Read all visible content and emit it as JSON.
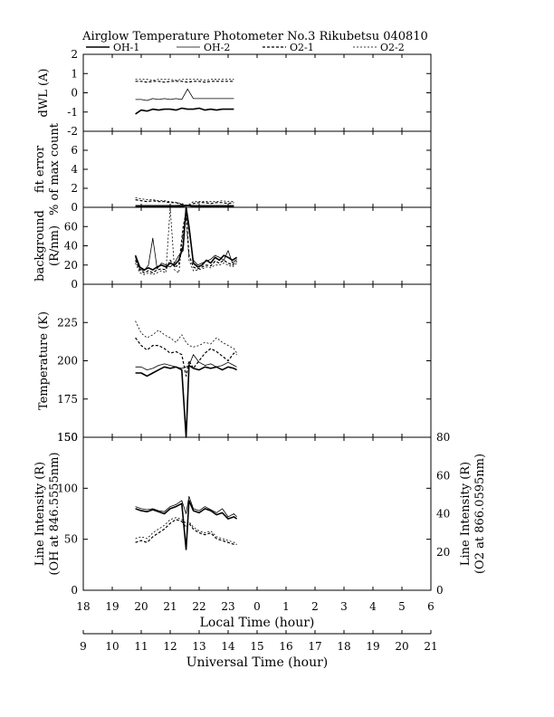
{
  "header": {
    "title": "Airglow Temperature Photometer No.3   Rikubetsu   040810",
    "legend": [
      {
        "label": "OH-1",
        "style": "solid-thick"
      },
      {
        "label": "OH-2",
        "style": "solid-thin"
      },
      {
        "label": "O2-1",
        "style": "dashed-thick"
      },
      {
        "label": "O2-2",
        "style": "dashed-thin"
      }
    ]
  },
  "axes": {
    "local_time_title": "Local Time (hour)",
    "universal_time_title": "Universal Time (hour)",
    "local_ticks": [
      "18",
      "19",
      "20",
      "21",
      "22",
      "23",
      "0",
      "1",
      "2",
      "3",
      "4",
      "5",
      "6"
    ],
    "ut_ticks": [
      "9",
      "10",
      "11",
      "12",
      "13",
      "14",
      "15",
      "16",
      "17",
      "18",
      "19",
      "20",
      "21"
    ]
  },
  "chart_data": [
    {
      "type": "line",
      "panel": "dwl",
      "ylabel": "dWL (A)",
      "ylim": [
        -2,
        2
      ],
      "yticks": [
        "2",
        "1",
        "0",
        "-1",
        "-2"
      ],
      "x": [
        19.8,
        20.0,
        20.2,
        20.4,
        20.6,
        20.8,
        21.0,
        21.2,
        21.4,
        21.6,
        21.8,
        22.0,
        22.2,
        22.4,
        22.6,
        22.8,
        23.0,
        23.2
      ],
      "series": [
        {
          "name": "OH-1",
          "values": [
            -1.1,
            -0.9,
            -0.95,
            -0.85,
            -0.9,
            -0.85,
            -0.85,
            -0.9,
            -0.8,
            -0.85,
            -0.85,
            -0.8,
            -0.9,
            -0.85,
            -0.9,
            -0.85,
            -0.85,
            -0.85
          ]
        },
        {
          "name": "OH-2",
          "values": [
            -0.35,
            -0.35,
            -0.4,
            -0.3,
            -0.35,
            -0.3,
            -0.35,
            -0.3,
            -0.35,
            0.2,
            -0.3,
            -0.3,
            -0.3,
            -0.3,
            -0.3,
            -0.3,
            -0.3,
            -0.3
          ]
        },
        {
          "name": "O2-1",
          "values": [
            0.6,
            0.6,
            0.55,
            0.6,
            0.6,
            0.55,
            0.6,
            0.6,
            0.6,
            0.55,
            0.6,
            0.6,
            0.55,
            0.6,
            0.6,
            0.6,
            0.6,
            0.6
          ]
        },
        {
          "name": "O2-2",
          "values": [
            0.7,
            0.7,
            0.7,
            0.65,
            0.7,
            0.7,
            0.7,
            0.65,
            0.7,
            0.7,
            0.7,
            0.7,
            0.65,
            0.7,
            0.7,
            0.7,
            0.7,
            0.7
          ]
        }
      ]
    },
    {
      "type": "line",
      "panel": "fit",
      "ylabel": "fit error",
      "ylabel2": "% of max count",
      "ylim": [
        0,
        8
      ],
      "yticks": [
        "6",
        "4",
        "2",
        "0"
      ],
      "x": [
        19.8,
        20.0,
        20.2,
        20.4,
        20.6,
        20.8,
        21.0,
        21.2,
        21.4,
        21.6,
        21.8,
        22.0,
        22.2,
        22.4,
        22.6,
        22.8,
        23.0,
        23.2
      ],
      "series": [
        {
          "name": "OH-1",
          "values": [
            0.1,
            0.1,
            0.1,
            0.1,
            0.1,
            0.1,
            0.1,
            0.1,
            0.1,
            0.2,
            0.1,
            0.1,
            0.1,
            0.1,
            0.1,
            0.1,
            0.1,
            0.1
          ]
        },
        {
          "name": "OH-2",
          "values": [
            0.2,
            0.2,
            0.2,
            0.2,
            0.2,
            0.2,
            0.2,
            0.2,
            0.25,
            0.2,
            0.2,
            0.2,
            0.2,
            0.2,
            0.2,
            0.2,
            0.2,
            0.2
          ]
        },
        {
          "name": "O2-1",
          "values": [
            0.8,
            0.7,
            0.6,
            0.7,
            0.6,
            0.6,
            0.5,
            0.5,
            0.3,
            0.1,
            0.4,
            0.5,
            0.5,
            0.4,
            0.5,
            0.5,
            0.4,
            0.5
          ]
        },
        {
          "name": "O2-2",
          "values": [
            1.0,
            0.9,
            0.8,
            0.8,
            0.7,
            0.7,
            0.6,
            0.5,
            0.4,
            0.2,
            0.6,
            0.6,
            0.6,
            0.6,
            0.6,
            0.7,
            0.6,
            0.6
          ]
        }
      ]
    },
    {
      "type": "line",
      "panel": "background",
      "ylabel": "background",
      "ylabel2": "(R/nm)",
      "ylim": [
        0,
        80
      ],
      "yticks": [
        "60",
        "40",
        "20",
        "0"
      ],
      "x": [
        19.8,
        19.95,
        20.1,
        20.25,
        20.4,
        20.55,
        20.7,
        20.85,
        21.0,
        21.15,
        21.3,
        21.45,
        21.55,
        21.65,
        21.8,
        21.95,
        22.1,
        22.25,
        22.4,
        22.55,
        22.7,
        22.85,
        23.0,
        23.15,
        23.3
      ],
      "series": [
        {
          "name": "OH-1",
          "values": [
            30,
            18,
            15,
            17,
            15,
            18,
            20,
            18,
            22,
            20,
            25,
            40,
            80,
            60,
            22,
            18,
            20,
            25,
            22,
            28,
            25,
            30,
            28,
            25,
            28
          ]
        },
        {
          "name": "OH-2",
          "values": [
            28,
            16,
            14,
            20,
            48,
            16,
            22,
            20,
            18,
            22,
            30,
            35,
            78,
            55,
            25,
            20,
            22,
            24,
            26,
            30,
            28,
            25,
            35,
            22,
            26
          ]
        },
        {
          "name": "O2-1",
          "values": [
            25,
            15,
            12,
            14,
            12,
            15,
            16,
            15,
            25,
            18,
            20,
            60,
            75,
            30,
            18,
            16,
            18,
            20,
            19,
            24,
            22,
            25,
            22,
            20,
            24
          ]
        },
        {
          "name": "O2-2",
          "values": [
            22,
            12,
            10,
            12,
            10,
            12,
            14,
            12,
            80,
            15,
            12,
            55,
            70,
            25,
            14,
            15,
            16,
            18,
            17,
            20,
            20,
            22,
            20,
            18,
            22
          ]
        }
      ]
    },
    {
      "type": "line",
      "panel": "temperature",
      "ylabel": "Temperature (K)",
      "ylim": [
        150,
        250
      ],
      "yticks": [
        "225",
        "200",
        "175",
        "150"
      ],
      "x": [
        19.8,
        20.0,
        20.2,
        20.4,
        20.6,
        20.8,
        21.0,
        21.2,
        21.4,
        21.55,
        21.65,
        21.8,
        22.0,
        22.2,
        22.4,
        22.6,
        22.8,
        23.0,
        23.2,
        23.3
      ],
      "series": [
        {
          "name": "OH-1",
          "values": [
            192,
            192,
            190,
            192,
            194,
            196,
            195,
            196,
            194,
            150,
            197,
            195,
            194,
            196,
            195,
            196,
            194,
            196,
            195,
            194
          ]
        },
        {
          "name": "OH-2",
          "values": [
            196,
            196,
            194,
            195,
            197,
            198,
            197,
            196,
            195,
            196,
            197,
            204,
            199,
            197,
            198,
            196,
            197,
            199,
            197,
            196
          ]
        },
        {
          "name": "O2-1",
          "values": [
            215,
            210,
            207,
            210,
            210,
            208,
            205,
            206,
            204,
            190,
            200,
            195,
            200,
            205,
            208,
            206,
            203,
            200,
            205,
            204
          ]
        },
        {
          "name": "O2-2",
          "values": [
            226,
            218,
            215,
            217,
            220,
            217,
            215,
            212,
            217,
            212,
            210,
            209,
            210,
            212,
            211,
            215,
            212,
            210,
            208,
            205
          ]
        }
      ]
    },
    {
      "type": "line",
      "panel": "intensity",
      "ylabel": "Line Intensity (R)",
      "ylabel2": "(OH at 846.5555nm)",
      "y2label": "Line Intensity (R)",
      "y2label2": "(O2 at 866.0595nm)",
      "ylim": [
        0,
        150
      ],
      "yticks": [
        "150",
        "100",
        "50",
        "0"
      ],
      "y2lim": [
        0,
        80
      ],
      "y2ticks": [
        "80",
        "60",
        "40",
        "20",
        "0"
      ],
      "x": [
        19.8,
        20.0,
        20.2,
        20.4,
        20.6,
        20.8,
        21.0,
        21.2,
        21.4,
        21.55,
        21.65,
        21.8,
        22.0,
        22.2,
        22.4,
        22.6,
        22.8,
        23.0,
        23.2,
        23.3
      ],
      "series": [
        {
          "name": "OH-1",
          "axis": "left",
          "values": [
            80,
            78,
            77,
            79,
            77,
            75,
            80,
            82,
            85,
            40,
            88,
            78,
            76,
            80,
            78,
            74,
            76,
            70,
            72,
            70
          ]
        },
        {
          "name": "OH-2",
          "axis": "left",
          "values": [
            82,
            80,
            79,
            80,
            78,
            77,
            82,
            84,
            88,
            75,
            92,
            80,
            78,
            82,
            79,
            76,
            80,
            72,
            75,
            72
          ]
        },
        {
          "name": "O2-1",
          "axis": "right",
          "values": [
            25,
            26,
            25,
            28,
            30,
            32,
            35,
            37,
            36,
            33,
            35,
            32,
            30,
            29,
            30,
            27,
            26,
            25,
            24,
            24
          ]
        },
        {
          "name": "O2-2",
          "axis": "right",
          "values": [
            27,
            28,
            27,
            30,
            32,
            34,
            37,
            38,
            37,
            35,
            36,
            33,
            31,
            30,
            31,
            28,
            27,
            26,
            25,
            25
          ]
        }
      ]
    }
  ]
}
